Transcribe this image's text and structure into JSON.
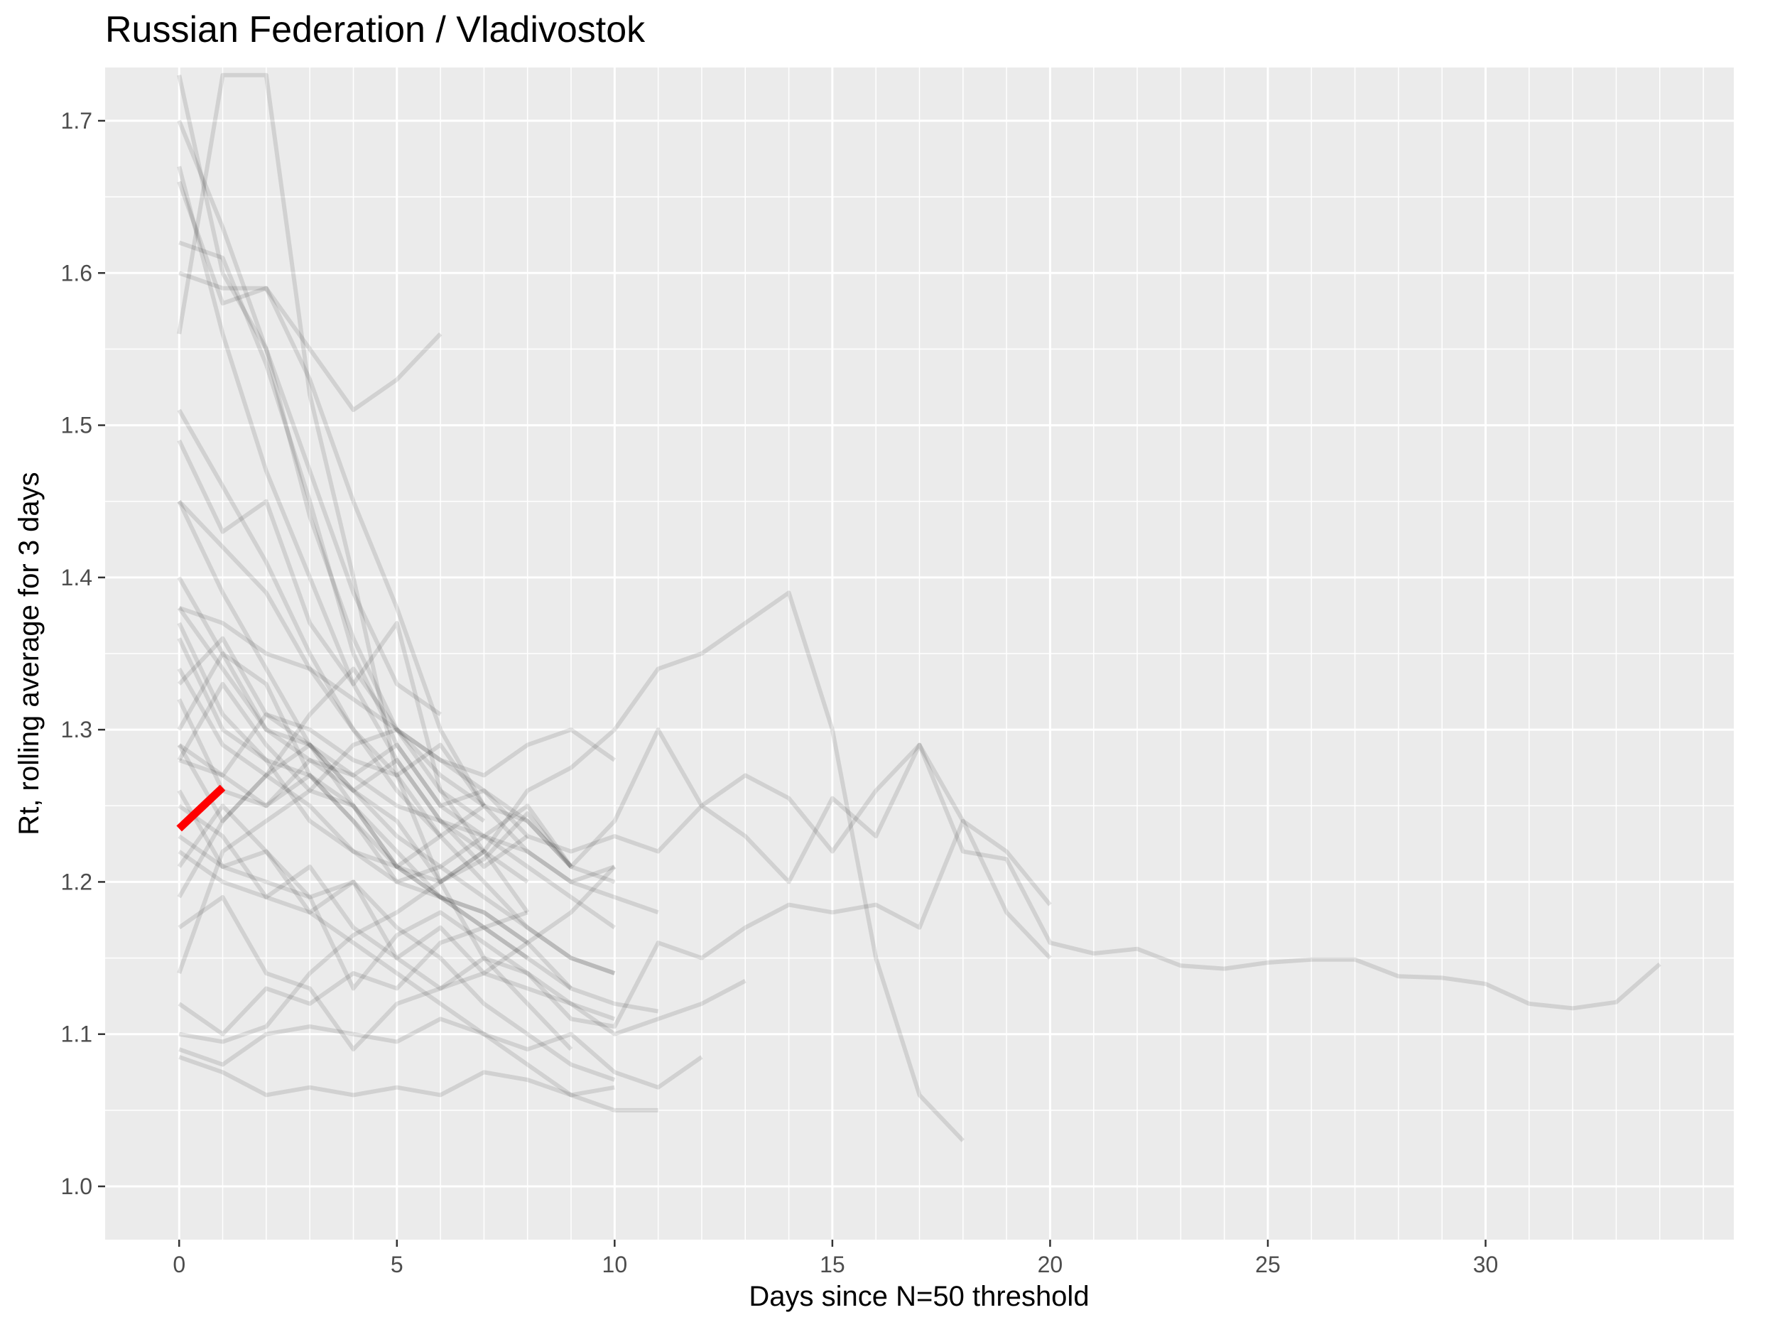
{
  "chart_data": {
    "type": "line",
    "title": "Russian Federation / Vladivostok",
    "xlabel": "Days since N=50 threshold",
    "ylabel": "Rt, rolling average for 3 days",
    "xlim": [
      -1.7,
      35.7
    ],
    "ylim": [
      0.965,
      1.735
    ],
    "x_ticks": [
      0,
      5,
      10,
      15,
      20,
      25,
      30
    ],
    "y_ticks": [
      1.0,
      1.1,
      1.2,
      1.3,
      1.4,
      1.5,
      1.6,
      1.7
    ],
    "x_tick_labels": [
      "0",
      "5",
      "10",
      "15",
      "20",
      "25",
      "30"
    ],
    "y_tick_labels": [
      "1.0",
      "1.1",
      "1.2",
      "1.3",
      "1.4",
      "1.5",
      "1.6",
      "1.7"
    ],
    "grid": true,
    "background_color": "#ebebeb",
    "grid_color": "#ffffff",
    "context_color": "#000000",
    "context_opacity": 0.11,
    "highlight_color": "#ff0000",
    "highlight": {
      "x": [
        0,
        1
      ],
      "y": [
        1.235,
        1.262
      ]
    },
    "context_series": [
      {
        "x": [
          0,
          1,
          2,
          3,
          4,
          5,
          6,
          7,
          8,
          9,
          10,
          11,
          12,
          13,
          14,
          15,
          16,
          17,
          18,
          19,
          20,
          21,
          22,
          23,
          24,
          25,
          26,
          27,
          28,
          29,
          30,
          31,
          32,
          33,
          34
        ],
        "y": [
          1.1,
          1.095,
          1.105,
          1.14,
          1.165,
          1.18,
          1.2,
          1.215,
          1.245,
          1.21,
          1.24,
          1.3,
          1.25,
          1.23,
          1.2,
          1.255,
          1.23,
          1.29,
          1.22,
          1.215,
          1.16,
          1.153,
          1.156,
          1.145,
          1.143,
          1.147,
          1.149,
          1.149,
          1.138,
          1.137,
          1.133,
          1.12,
          1.117,
          1.121,
          1.146
        ]
      },
      {
        "x": [
          0,
          1,
          2,
          3,
          4,
          5,
          6,
          7,
          8,
          9,
          10,
          11,
          12,
          13,
          14,
          15,
          16,
          17,
          18,
          19,
          20
        ],
        "y": [
          1.26,
          1.21,
          1.2,
          1.19,
          1.13,
          1.165,
          1.18,
          1.16,
          1.14,
          1.11,
          1.105,
          1.16,
          1.15,
          1.17,
          1.185,
          1.18,
          1.185,
          1.17,
          1.24,
          1.18,
          1.15
        ]
      },
      {
        "x": [
          0,
          1,
          2,
          3,
          4,
          5,
          6,
          7,
          8,
          9,
          10,
          11,
          12,
          13,
          14,
          15,
          16,
          17,
          18
        ],
        "y": [
          1.36,
          1.3,
          1.28,
          1.24,
          1.22,
          1.21,
          1.2,
          1.22,
          1.26,
          1.275,
          1.3,
          1.34,
          1.35,
          1.37,
          1.39,
          1.3,
          1.15,
          1.06,
          1.03
        ]
      },
      {
        "x": [
          0,
          1,
          2,
          3,
          4,
          5,
          6,
          7,
          8,
          9,
          10,
          11,
          12,
          13,
          14,
          15,
          16,
          17,
          18,
          19,
          20
        ],
        "y": [
          1.32,
          1.26,
          1.25,
          1.28,
          1.27,
          1.29,
          1.25,
          1.26,
          1.23,
          1.22,
          1.23,
          1.22,
          1.25,
          1.27,
          1.255,
          1.22,
          1.26,
          1.29,
          1.24,
          1.22,
          1.185
        ]
      },
      {
        "x": [
          0,
          1,
          2,
          3,
          4,
          5,
          6
        ],
        "y": [
          1.66,
          1.58,
          1.59,
          1.55,
          1.51,
          1.53,
          1.56
        ]
      },
      {
        "x": [
          0,
          1,
          2,
          3,
          4,
          5,
          6,
          7,
          8
        ],
        "y": [
          1.73,
          1.6,
          1.55,
          1.44,
          1.36,
          1.3,
          1.26,
          1.22,
          1.18
        ]
      },
      {
        "x": [
          0,
          1,
          2,
          3,
          4,
          5,
          6,
          7,
          8,
          9
        ],
        "y": [
          1.56,
          1.73,
          1.73,
          1.52,
          1.4,
          1.27,
          1.2,
          1.15,
          1.12,
          1.09
        ]
      },
      {
        "x": [
          0,
          1,
          2,
          3,
          4,
          5,
          6,
          7,
          8,
          9,
          10
        ],
        "y": [
          1.45,
          1.42,
          1.39,
          1.34,
          1.3,
          1.27,
          1.23,
          1.2,
          1.17,
          1.15,
          1.14
        ]
      },
      {
        "x": [
          0,
          1,
          2,
          3,
          4,
          5,
          6,
          7,
          8,
          9,
          10
        ],
        "y": [
          1.4,
          1.35,
          1.3,
          1.29,
          1.26,
          1.23,
          1.21,
          1.19,
          1.17,
          1.15,
          1.14
        ]
      },
      {
        "x": [
          0,
          1,
          2,
          3,
          4,
          5,
          6,
          7,
          8,
          9,
          10
        ],
        "y": [
          1.22,
          1.2,
          1.19,
          1.21,
          1.17,
          1.15,
          1.13,
          1.14,
          1.16,
          1.18,
          1.21
        ]
      },
      {
        "x": [
          0,
          1,
          2,
          3,
          4,
          5,
          6,
          7,
          8,
          9,
          10
        ],
        "y": [
          1.17,
          1.19,
          1.14,
          1.13,
          1.09,
          1.12,
          1.13,
          1.15,
          1.14,
          1.12,
          1.11
        ]
      },
      {
        "x": [
          0,
          1,
          2,
          3,
          4,
          5,
          6,
          7,
          8,
          9,
          10
        ],
        "y": [
          1.085,
          1.075,
          1.06,
          1.065,
          1.06,
          1.065,
          1.06,
          1.075,
          1.07,
          1.06,
          1.065
        ]
      },
      {
        "x": [
          0,
          1,
          2,
          3,
          4,
          5,
          6,
          7,
          8,
          9,
          10,
          11,
          12
        ],
        "y": [
          1.09,
          1.08,
          1.1,
          1.105,
          1.1,
          1.095,
          1.11,
          1.1,
          1.09,
          1.1,
          1.075,
          1.065,
          1.085
        ]
      },
      {
        "x": [
          0,
          1,
          2,
          3,
          4,
          5,
          6,
          7,
          8,
          9,
          10,
          11
        ],
        "y": [
          1.33,
          1.36,
          1.31,
          1.3,
          1.28,
          1.27,
          1.29,
          1.25,
          1.22,
          1.2,
          1.19,
          1.18
        ]
      },
      {
        "x": [
          0,
          1,
          2,
          3,
          4,
          5,
          6,
          7,
          8,
          9,
          10,
          11,
          12,
          13
        ],
        "y": [
          1.21,
          1.25,
          1.22,
          1.18,
          1.2,
          1.15,
          1.17,
          1.14,
          1.13,
          1.12,
          1.1,
          1.11,
          1.12,
          1.135
        ]
      },
      {
        "x": [
          0,
          1,
          2,
          3,
          4,
          5,
          6,
          7,
          8,
          9,
          10
        ],
        "y": [
          1.14,
          1.22,
          1.24,
          1.26,
          1.29,
          1.3,
          1.28,
          1.27,
          1.29,
          1.3,
          1.28
        ]
      },
      {
        "x": [
          0,
          1,
          2,
          3,
          4,
          5,
          6,
          7,
          8,
          9,
          10
        ],
        "y": [
          1.38,
          1.37,
          1.35,
          1.34,
          1.32,
          1.3,
          1.28,
          1.26,
          1.24,
          1.21,
          1.2
        ]
      },
      {
        "x": [
          0,
          1,
          2,
          3,
          4,
          5,
          6,
          7,
          8,
          9,
          10,
          11
        ],
        "y": [
          1.28,
          1.33,
          1.29,
          1.26,
          1.25,
          1.21,
          1.19,
          1.18,
          1.16,
          1.13,
          1.12,
          1.115
        ]
      },
      {
        "x": [
          0,
          1,
          2,
          3,
          4,
          5,
          6
        ],
        "y": [
          1.7,
          1.63,
          1.55,
          1.47,
          1.39,
          1.33,
          1.31
        ]
      },
      {
        "x": [
          0,
          1,
          2,
          3,
          4,
          5,
          6,
          7
        ],
        "y": [
          1.49,
          1.43,
          1.45,
          1.37,
          1.33,
          1.37,
          1.26,
          1.24
        ]
      },
      {
        "x": [
          0,
          1,
          2,
          3,
          4,
          5,
          6,
          7
        ],
        "y": [
          1.6,
          1.59,
          1.59,
          1.53,
          1.45,
          1.38,
          1.3,
          1.25
        ]
      },
      {
        "x": [
          0,
          1,
          2,
          3,
          4,
          5,
          6,
          7,
          8
        ],
        "y": [
          1.28,
          1.27,
          1.31,
          1.29,
          1.26,
          1.28,
          1.24,
          1.21,
          1.23
        ]
      },
      {
        "x": [
          0,
          1,
          2,
          3,
          4,
          5,
          6,
          7,
          8,
          9
        ],
        "y": [
          1.37,
          1.31,
          1.28,
          1.27,
          1.24,
          1.2,
          1.19,
          1.17,
          1.15,
          1.13
        ]
      },
      {
        "x": [
          0,
          1,
          2,
          3,
          4,
          5,
          6,
          7,
          8
        ],
        "y": [
          1.12,
          1.1,
          1.13,
          1.12,
          1.14,
          1.13,
          1.16,
          1.17,
          1.15
        ]
      },
      {
        "x": [
          0,
          1,
          2,
          3,
          4,
          5,
          6,
          7,
          8,
          9,
          10
        ],
        "y": [
          1.23,
          1.21,
          1.22,
          1.19,
          1.2,
          1.17,
          1.15,
          1.12,
          1.1,
          1.08,
          1.07
        ]
      },
      {
        "x": [
          0,
          1,
          2,
          3,
          4,
          5,
          6,
          7,
          8,
          9,
          10,
          11
        ],
        "y": [
          1.25,
          1.23,
          1.19,
          1.18,
          1.16,
          1.14,
          1.12,
          1.1,
          1.08,
          1.06,
          1.05,
          1.05
        ]
      },
      {
        "x": [
          0,
          1,
          2,
          3,
          4,
          5,
          6,
          7,
          8,
          9
        ],
        "y": [
          1.62,
          1.61,
          1.54,
          1.45,
          1.35,
          1.29,
          1.25,
          1.23,
          1.25,
          1.21
        ]
      },
      {
        "x": [
          0,
          1,
          2,
          3,
          4,
          5,
          6,
          7,
          8,
          9,
          10
        ],
        "y": [
          1.34,
          1.29,
          1.27,
          1.25,
          1.22,
          1.2,
          1.21,
          1.23,
          1.21,
          1.19,
          1.17
        ]
      },
      {
        "x": [
          0,
          1,
          2,
          3,
          4,
          5,
          6,
          7,
          8,
          9,
          10
        ],
        "y": [
          1.19,
          1.24,
          1.27,
          1.29,
          1.27,
          1.25,
          1.24,
          1.23,
          1.22,
          1.2,
          1.21
        ]
      },
      {
        "x": [
          0,
          1,
          2,
          3,
          4,
          5,
          6,
          7,
          8
        ],
        "y": [
          1.3,
          1.35,
          1.33,
          1.27,
          1.25,
          1.22,
          1.19,
          1.18,
          1.16
        ]
      },
      {
        "x": [
          0,
          1,
          2,
          3,
          4,
          5,
          6
        ],
        "y": [
          1.51,
          1.46,
          1.41,
          1.35,
          1.3,
          1.26,
          1.23
        ]
      },
      {
        "x": [
          0,
          1,
          2,
          3,
          4,
          5,
          6,
          7,
          8
        ],
        "y": [
          1.38,
          1.34,
          1.3,
          1.28,
          1.26,
          1.24,
          1.2,
          1.22,
          1.2
        ]
      },
      {
        "x": [
          0,
          1,
          2,
          3,
          4,
          5,
          6,
          7
        ],
        "y": [
          1.29,
          1.24,
          1.27,
          1.31,
          1.34,
          1.3,
          1.27,
          1.25
        ]
      },
      {
        "x": [
          0,
          1,
          2,
          3,
          4,
          5,
          6,
          7,
          8
        ],
        "y": [
          1.45,
          1.39,
          1.34,
          1.29,
          1.25,
          1.21,
          1.19,
          1.17,
          1.18
        ]
      },
      {
        "x": [
          0,
          1,
          2,
          3,
          4,
          5,
          6,
          7
        ],
        "y": [
          1.67,
          1.56,
          1.47,
          1.4,
          1.33,
          1.28,
          1.24,
          1.22
        ]
      },
      {
        "x": [
          0,
          1,
          2,
          3,
          4,
          5,
          6,
          7,
          8,
          9
        ],
        "y": [
          1.29,
          1.27,
          1.25,
          1.27,
          1.24,
          1.21,
          1.23,
          1.25,
          1.24,
          1.21
        ]
      }
    ]
  }
}
